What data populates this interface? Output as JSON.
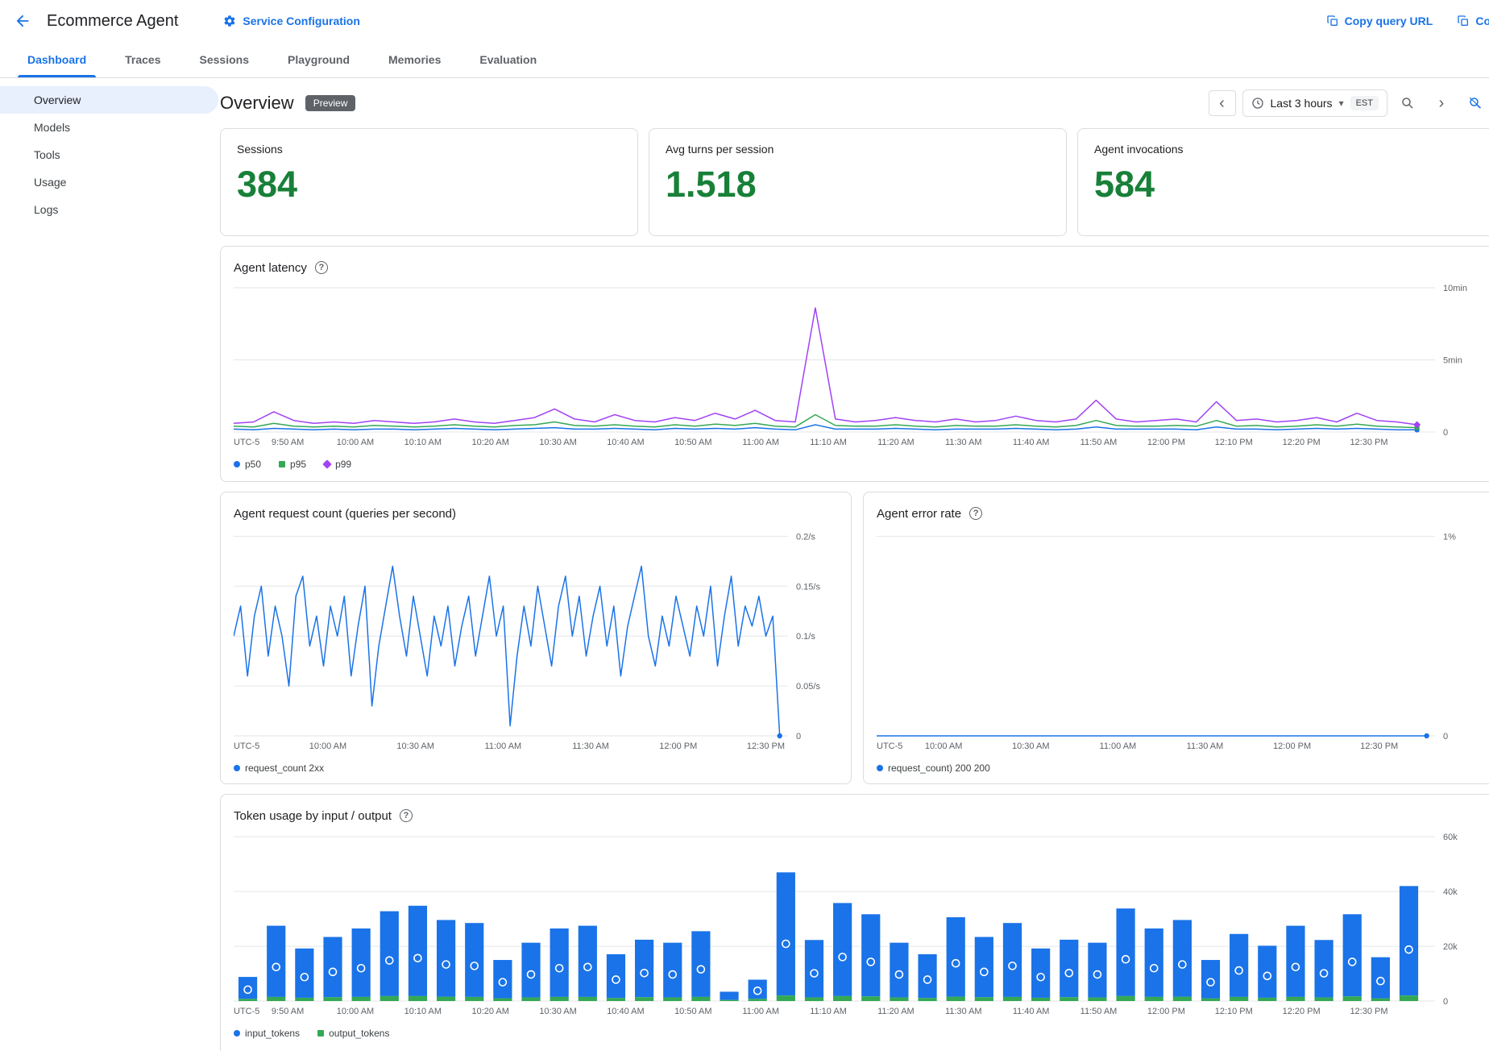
{
  "header": {
    "title": "Ecommerce Agent",
    "service_configuration": "Service Configuration",
    "copy_query_url": "Copy query URL",
    "copy_identity": "Copy identity"
  },
  "tabs": [
    {
      "label": "Dashboard"
    },
    {
      "label": "Traces"
    },
    {
      "label": "Sessions"
    },
    {
      "label": "Playground"
    },
    {
      "label": "Memories"
    },
    {
      "label": "Evaluation"
    }
  ],
  "sidebar": {
    "items": [
      {
        "label": "Overview"
      },
      {
        "label": "Models"
      },
      {
        "label": "Tools"
      },
      {
        "label": "Usage"
      },
      {
        "label": "Logs"
      }
    ]
  },
  "page": {
    "title": "Overview",
    "badge": "Preview"
  },
  "time_controls": {
    "range": "Last 3 hours",
    "timezone": "EST"
  },
  "icons": {
    "chevron_left": "‹",
    "chevron_right": "›",
    "caret_down": "▾",
    "help": "?"
  },
  "stats": [
    {
      "label": "Sessions",
      "value": "384"
    },
    {
      "label": "Avg turns per session",
      "value": "1.518"
    },
    {
      "label": "Agent invocations",
      "value": "584"
    }
  ],
  "colors": {
    "accent": "#1a73e8",
    "stat_value": "#188038",
    "p50": "#1a73e8",
    "p95": "#34a853",
    "p99": "#a142f4",
    "bar_blue": "#1a73e8",
    "bar_green": "#34a853"
  },
  "chart_data": [
    {
      "id": "latency",
      "type": "line",
      "title": "Agent latency",
      "ylim": [
        0,
        10.5
      ],
      "tick_start": 0.045,
      "tick_end": 0.945,
      "y_ticks": [
        {
          "v": 0,
          "label": "0"
        },
        {
          "v": 5,
          "label": "5min"
        },
        {
          "v": 10,
          "label": "10min"
        }
      ],
      "x_ticks": [
        "UTC-5",
        "9:50 AM",
        "10:00 AM",
        "10:10 AM",
        "10:20 AM",
        "10:30 AM",
        "10:40 AM",
        "10:50 AM",
        "11:00 AM",
        "11:10 AM",
        "11:20 AM",
        "11:30 AM",
        "11:40 AM",
        "11:50 AM",
        "12:00 PM",
        "12:10 PM",
        "12:20 PM",
        "12:30 PM"
      ],
      "series": [
        {
          "name": "p50",
          "color": "#1a73e8",
          "marker": "circle",
          "values": [
            0.2,
            0.15,
            0.25,
            0.2,
            0.15,
            0.2,
            0.15,
            0.2,
            0.2,
            0.15,
            0.2,
            0.25,
            0.2,
            0.15,
            0.2,
            0.25,
            0.3,
            0.2,
            0.2,
            0.25,
            0.2,
            0.15,
            0.25,
            0.2,
            0.25,
            0.2,
            0.3,
            0.2,
            0.15,
            0.5,
            0.2,
            0.2,
            0.2,
            0.25,
            0.2,
            0.15,
            0.2,
            0.2,
            0.2,
            0.25,
            0.2,
            0.15,
            0.2,
            0.35,
            0.2,
            0.2,
            0.2,
            0.2,
            0.15,
            0.35,
            0.2,
            0.2,
            0.15,
            0.2,
            0.25,
            0.2,
            0.25,
            0.2,
            0.15,
            0.15
          ]
        },
        {
          "name": "p95",
          "color": "#34a853",
          "marker": "square",
          "values": [
            0.4,
            0.35,
            0.6,
            0.4,
            0.35,
            0.4,
            0.35,
            0.45,
            0.4,
            0.35,
            0.4,
            0.5,
            0.4,
            0.35,
            0.45,
            0.5,
            0.7,
            0.45,
            0.4,
            0.5,
            0.4,
            0.35,
            0.5,
            0.4,
            0.55,
            0.45,
            0.6,
            0.4,
            0.35,
            1.2,
            0.45,
            0.4,
            0.4,
            0.5,
            0.4,
            0.35,
            0.45,
            0.4,
            0.4,
            0.5,
            0.4,
            0.35,
            0.45,
            0.8,
            0.45,
            0.4,
            0.4,
            0.45,
            0.4,
            0.8,
            0.4,
            0.45,
            0.35,
            0.4,
            0.5,
            0.4,
            0.55,
            0.4,
            0.35,
            0.3
          ]
        },
        {
          "name": "p99",
          "color": "#a142f4",
          "marker": "diamond",
          "values": [
            0.6,
            0.7,
            1.4,
            0.8,
            0.6,
            0.7,
            0.6,
            0.8,
            0.7,
            0.6,
            0.7,
            0.9,
            0.7,
            0.6,
            0.8,
            1.0,
            1.6,
            0.9,
            0.7,
            1.2,
            0.8,
            0.7,
            1.0,
            0.8,
            1.3,
            0.9,
            1.5,
            0.8,
            0.7,
            8.6,
            0.9,
            0.7,
            0.8,
            1.0,
            0.8,
            0.7,
            0.9,
            0.7,
            0.8,
            1.1,
            0.8,
            0.7,
            0.9,
            2.2,
            0.9,
            0.7,
            0.8,
            0.9,
            0.7,
            2.1,
            0.8,
            0.9,
            0.7,
            0.8,
            1.0,
            0.7,
            1.3,
            0.8,
            0.7,
            0.5
          ]
        }
      ]
    },
    {
      "id": "request",
      "type": "line",
      "title": "Agent request count (queries per second)",
      "ylim": [
        0,
        0.21
      ],
      "tick_start": 0.17,
      "tick_end": 0.96,
      "y_ticks": [
        {
          "v": 0,
          "label": "0"
        },
        {
          "v": 0.05,
          "label": "0.05/s"
        },
        {
          "v": 0.1,
          "label": "0.1/s"
        },
        {
          "v": 0.15,
          "label": "0.15/s"
        },
        {
          "v": 0.2,
          "label": "0.2/s"
        }
      ],
      "x_ticks": [
        "UTC-5",
        "10:00 AM",
        "10:30 AM",
        "11:00 AM",
        "11:30 AM",
        "12:00 PM",
        "12:30 PM"
      ],
      "series": [
        {
          "name": "request_count 2xx",
          "color": "#1a73e8",
          "marker": "circle",
          "values": [
            0.1,
            0.13,
            0.06,
            0.12,
            0.15,
            0.08,
            0.13,
            0.1,
            0.05,
            0.14,
            0.16,
            0.09,
            0.12,
            0.07,
            0.13,
            0.1,
            0.14,
            0.06,
            0.11,
            0.15,
            0.03,
            0.09,
            0.13,
            0.17,
            0.12,
            0.08,
            0.14,
            0.1,
            0.06,
            0.12,
            0.09,
            0.13,
            0.07,
            0.11,
            0.14,
            0.08,
            0.12,
            0.16,
            0.1,
            0.13,
            0.01,
            0.08,
            0.13,
            0.09,
            0.15,
            0.11,
            0.07,
            0.13,
            0.16,
            0.1,
            0.14,
            0.08,
            0.12,
            0.15,
            0.09,
            0.13,
            0.06,
            0.11,
            0.14,
            0.17,
            0.1,
            0.07,
            0.12,
            0.09,
            0.14,
            0.11,
            0.08,
            0.13,
            0.1,
            0.15,
            0.07,
            0.12,
            0.16,
            0.09,
            0.13,
            0.11,
            0.14,
            0.1,
            0.12,
            0.0
          ]
        }
      ]
    },
    {
      "id": "error",
      "type": "line",
      "title": "Agent error rate",
      "ylim": [
        0,
        1.05
      ],
      "tick_start": 0.12,
      "tick_end": 0.9,
      "y_ticks": [
        {
          "v": 0,
          "label": "0"
        },
        {
          "v": 1,
          "label": "1%"
        }
      ],
      "x_ticks": [
        "UTC-5",
        "10:00 AM",
        "10:30 AM",
        "11:00 AM",
        "11:30 AM",
        "12:00 PM",
        "12:30 PM"
      ],
      "series": [
        {
          "name": "request_count) 200 200",
          "color": "#1a73e8",
          "marker": "circle",
          "values": [
            0,
            0
          ]
        }
      ]
    },
    {
      "id": "tokens",
      "type": "bar",
      "title": "Token usage by input / output",
      "ylim": [
        0,
        63
      ],
      "tick_start": 0.045,
      "tick_end": 0.945,
      "y_ticks": [
        {
          "v": 0,
          "label": "0"
        },
        {
          "v": 20,
          "label": "20k"
        },
        {
          "v": 40,
          "label": "40k"
        },
        {
          "v": 60,
          "label": "60k"
        }
      ],
      "x_ticks": [
        "UTC-5",
        "9:50 AM",
        "10:00 AM",
        "10:10 AM",
        "10:20 AM",
        "10:30 AM",
        "10:40 AM",
        "10:50 AM",
        "11:00 AM",
        "11:10 AM",
        "11:20 AM",
        "11:30 AM",
        "11:40 AM",
        "11:50 AM",
        "12:00 PM",
        "12:10 PM",
        "12:20 PM",
        "12:30 PM"
      ],
      "series": [
        {
          "name": "input_tokens",
          "color": "#1a73e8",
          "marker": "circle"
        },
        {
          "name": "output_tokens",
          "color": "#34a853",
          "marker": "square"
        }
      ],
      "input_values": [
        8,
        26,
        18,
        22,
        25,
        31,
        33,
        28,
        27,
        14,
        20,
        25,
        26,
        16,
        21,
        20,
        24,
        3,
        7,
        45,
        21,
        34,
        30,
        20,
        16,
        29,
        22,
        27,
        18,
        21,
        20,
        32,
        25,
        28,
        14,
        23,
        19,
        26,
        21,
        30,
        15,
        40
      ],
      "output_values": [
        0.8,
        1.5,
        1.2,
        1.4,
        1.5,
        1.8,
        1.8,
        1.6,
        1.5,
        1.0,
        1.3,
        1.5,
        1.5,
        1.1,
        1.4,
        1.3,
        1.5,
        0.4,
        0.8,
        2.0,
        1.3,
        1.8,
        1.7,
        1.3,
        1.1,
        1.6,
        1.4,
        1.5,
        1.2,
        1.4,
        1.3,
        1.8,
        1.5,
        1.6,
        1.0,
        1.5,
        1.2,
        1.5,
        1.3,
        1.7,
        1.0,
        2.0
      ]
    }
  ]
}
